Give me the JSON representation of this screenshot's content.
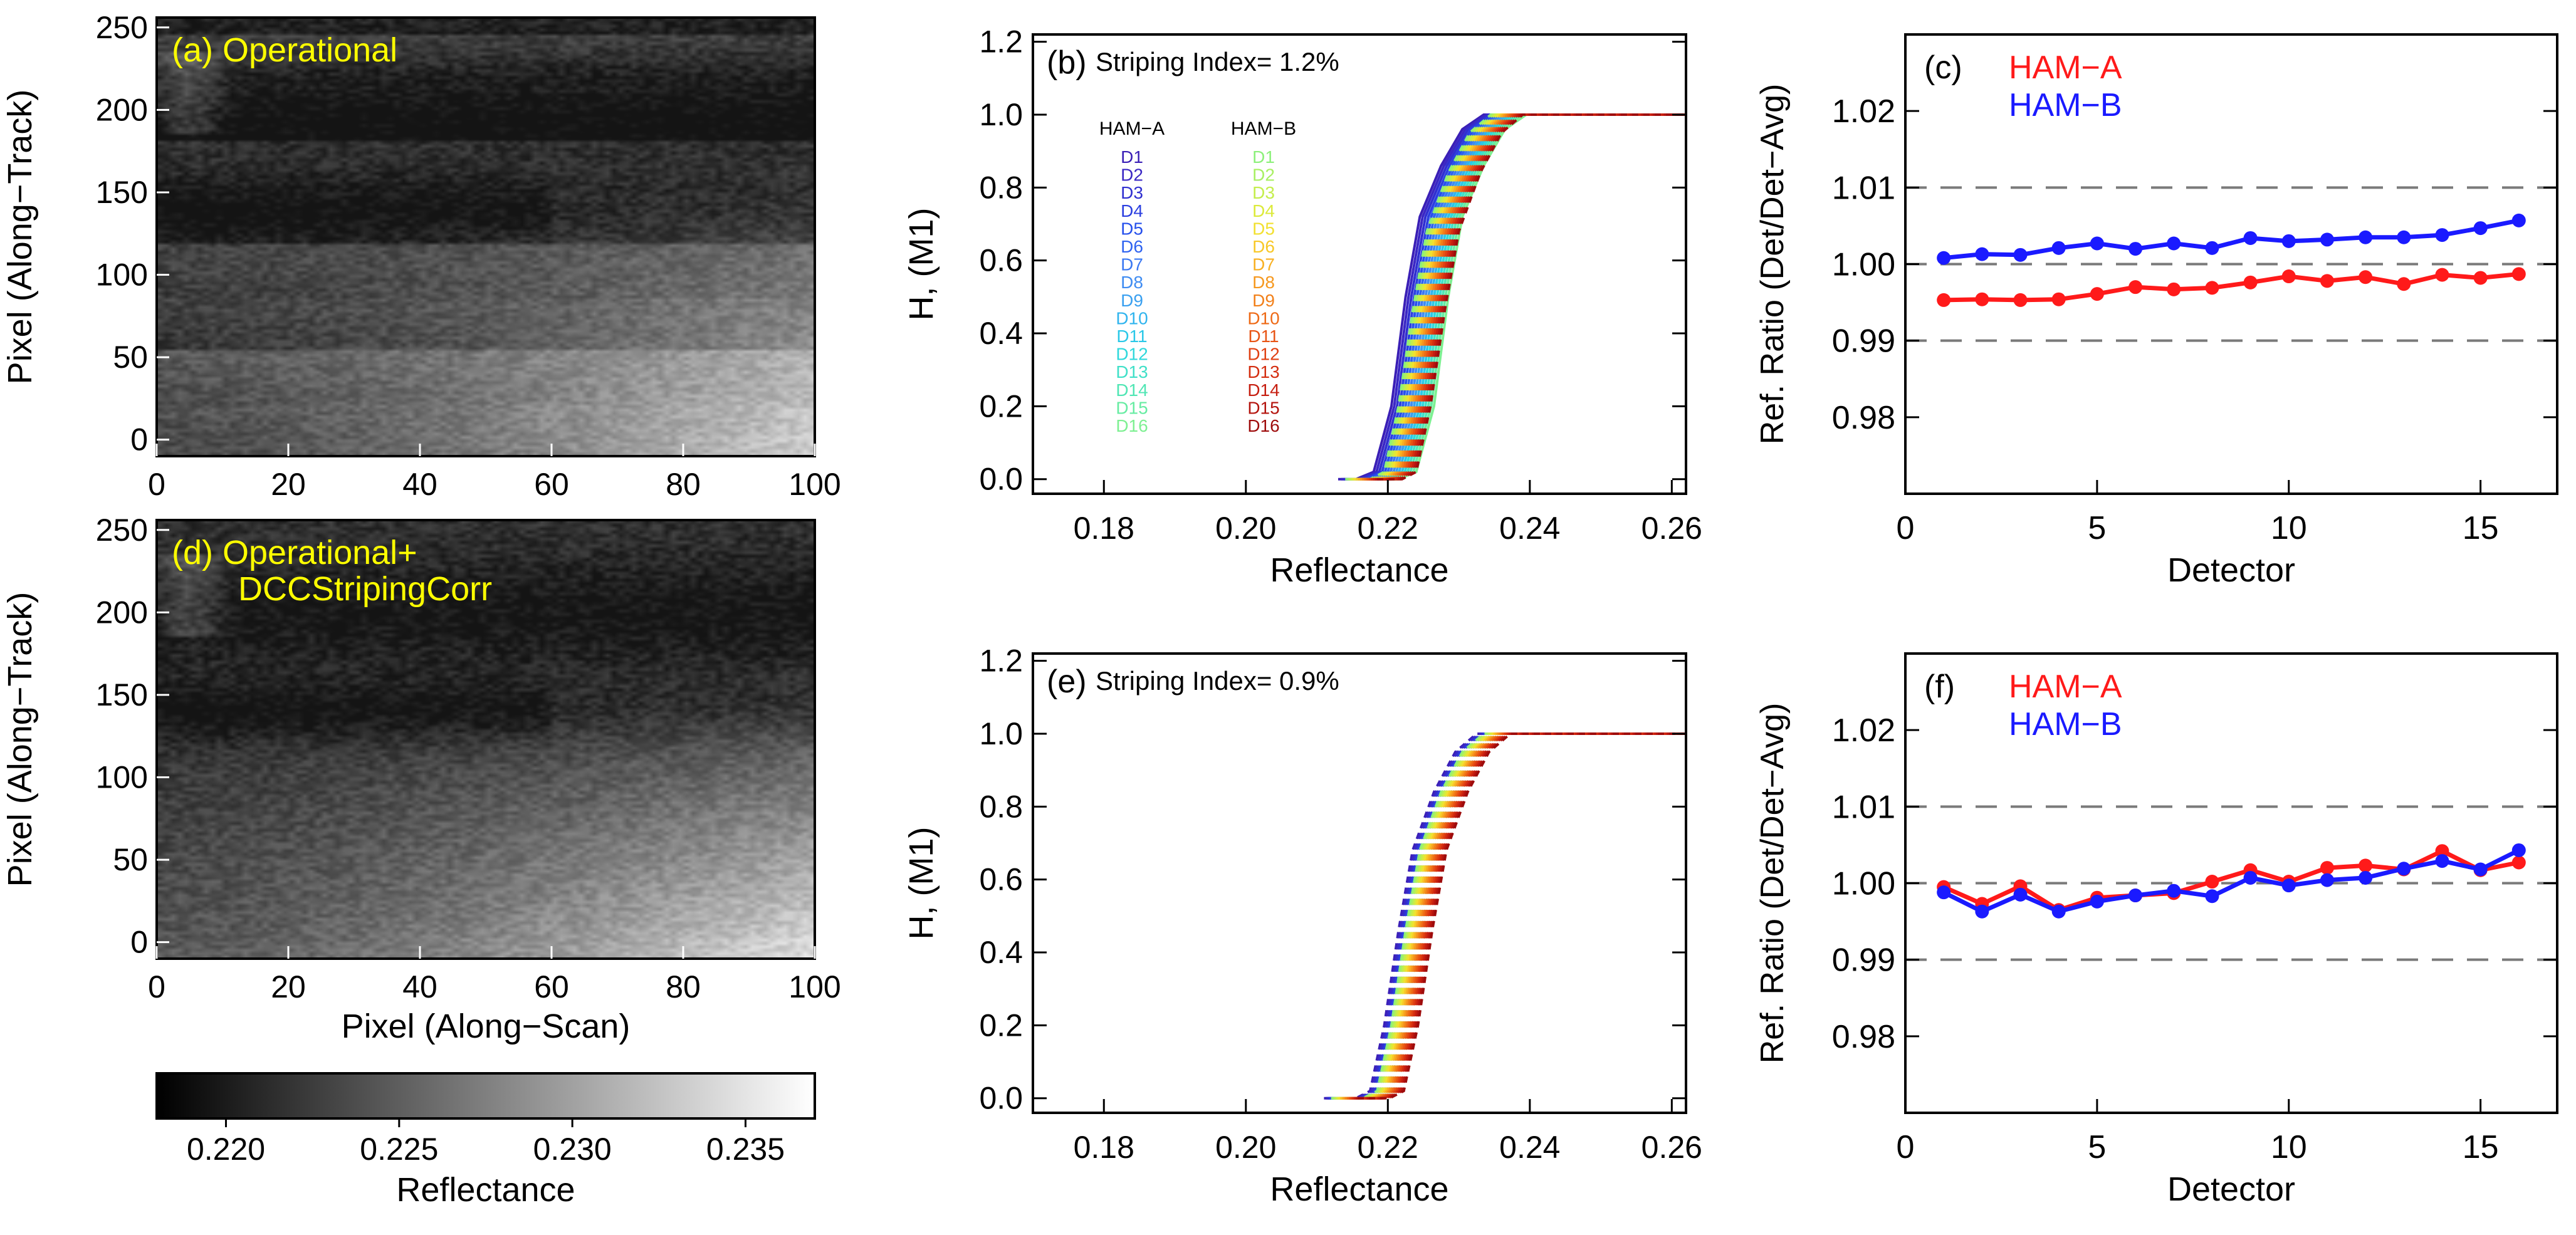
{
  "figure": {
    "colorbar": {
      "label": "Reflectance",
      "min": 0.218,
      "max": 0.237,
      "ticks": [
        "0.220",
        "0.225",
        "0.230",
        "0.235"
      ],
      "tick_values": [
        0.22,
        0.225,
        0.23,
        0.235
      ]
    }
  },
  "chart_data": [
    {
      "panel": "a",
      "type": "heatmap",
      "label": "(a) Operational",
      "xlabel": "",
      "ylabel": "Pixel (Along−Track)",
      "xlim": [
        0,
        100
      ],
      "ylim": [
        -10,
        256
      ],
      "xticks": [
        "0",
        "20",
        "40",
        "60",
        "80",
        "100"
      ],
      "yticks": [
        "0",
        "50",
        "100",
        "150",
        "200",
        "250"
      ],
      "striped": true
    },
    {
      "panel": "d",
      "type": "heatmap",
      "label": "(d) Operational+",
      "label_line2": "DCCStripingCorr",
      "xlabel": "Pixel (Along−Scan)",
      "ylabel": "Pixel (Along−Track)",
      "xlim": [
        0,
        100
      ],
      "ylim": [
        -10,
        256
      ],
      "xticks": [
        "0",
        "20",
        "40",
        "60",
        "80",
        "100"
      ],
      "yticks": [
        "0",
        "50",
        "100",
        "150",
        "200",
        "250"
      ],
      "striped": false
    },
    {
      "panel": "b",
      "type": "line",
      "label": "(b)",
      "annotation": "Striping Index= 1.2%",
      "xlabel": "Reflectance",
      "ylabel": "H, (M1)",
      "xlim": [
        0.17,
        0.262
      ],
      "ylim": [
        -0.04,
        1.22
      ],
      "xticks": [
        "0.18",
        "0.20",
        "0.22",
        "0.24",
        "0.26"
      ],
      "yticks": [
        "0.0",
        "0.2",
        "0.4",
        "0.6",
        "0.8",
        "1.0",
        "1.2"
      ],
      "legend_header_a": "HAM−A",
      "legend_header_b": "HAM−B",
      "detectors": [
        "D1",
        "D2",
        "D3",
        "D4",
        "D5",
        "D6",
        "D7",
        "D8",
        "D9",
        "D10",
        "D11",
        "D12",
        "D13",
        "D14",
        "D15",
        "D16"
      ],
      "colors_a": [
        "#3a1fb6",
        "#3a27c4",
        "#3030d0",
        "#2b3fe0",
        "#2650ec",
        "#2f63f0",
        "#3a78f2",
        "#3f8cf2",
        "#3aa0f0",
        "#30b4ee",
        "#2ac8e8",
        "#2fd8dc",
        "#40e0c8",
        "#50e6b4",
        "#66eca2",
        "#7ef092"
      ],
      "colors_b": [
        "#8cf07a",
        "#a8f062",
        "#c4ee4c",
        "#dcea3a",
        "#f2e030",
        "#f8c828",
        "#f8b022",
        "#f6981e",
        "#f2801a",
        "#ee6a16",
        "#e85414",
        "#e04012",
        "#d42e10",
        "#c61e10",
        "#b4140e",
        "#9e0c0c"
      ],
      "curve_a_x": [
        0.213,
        0.2155,
        0.218,
        0.2205,
        0.2225,
        0.2245,
        0.2275,
        0.2305,
        0.2335,
        0.236,
        0.262
      ],
      "curve_a_y": [
        0.0,
        0.0,
        0.02,
        0.2,
        0.5,
        0.72,
        0.86,
        0.96,
        1.0,
        1.0,
        1.0
      ],
      "shift_a": 0.0004,
      "curve_b_x": [
        0.214,
        0.2175,
        0.2195,
        0.2215,
        0.2235,
        0.2255,
        0.2285,
        0.2315,
        0.2345,
        0.237,
        0.262
      ],
      "curve_b_y": [
        0.0,
        0.0,
        0.02,
        0.2,
        0.46,
        0.68,
        0.84,
        0.95,
        1.0,
        1.0,
        1.0
      ],
      "shift_b": 0.0003
    },
    {
      "panel": "e",
      "type": "line",
      "label": "(e)",
      "annotation": "Striping Index= 0.9%",
      "xlabel": "Reflectance",
      "ylabel": "H, (M1)",
      "xlim": [
        0.17,
        0.262
      ],
      "ylim": [
        -0.04,
        1.22
      ],
      "xticks": [
        "0.18",
        "0.20",
        "0.22",
        "0.24",
        "0.26"
      ],
      "yticks": [
        "0.0",
        "0.2",
        "0.4",
        "0.6",
        "0.8",
        "1.0",
        "1.2"
      ],
      "curve_x": [
        0.213,
        0.2175,
        0.2195,
        0.2215,
        0.2235,
        0.2255,
        0.2285,
        0.2315,
        0.2345,
        0.2375,
        0.262
      ],
      "curve_y": [
        0.0,
        0.0,
        0.02,
        0.2,
        0.46,
        0.68,
        0.84,
        0.95,
        1.0,
        1.0,
        1.0
      ],
      "shift": 0.00025
    },
    {
      "panel": "c",
      "type": "line",
      "label": "(c)",
      "xlabel": "Detector",
      "ylabel": "Ref. Ratio (Det/Det−Avg)",
      "xlim": [
        0,
        17
      ],
      "ylim": [
        0.97,
        1.03
      ],
      "xticks": [
        "0",
        "5",
        "10",
        "15"
      ],
      "yticks": [
        "0.98",
        "0.99",
        "1.00",
        "1.01",
        "1.02"
      ],
      "ref_lines": [
        0.99,
        1.0,
        1.01
      ],
      "x": [
        1,
        2,
        3,
        4,
        5,
        6,
        7,
        8,
        9,
        10,
        11,
        12,
        13,
        14,
        15,
        16
      ],
      "series": [
        {
          "name": "HAM−A",
          "color": "#ff1a1a",
          "values": [
            0.9953,
            0.9954,
            0.9953,
            0.9954,
            0.9961,
            0.997,
            0.9967,
            0.9969,
            0.9976,
            0.9984,
            0.9978,
            0.9983,
            0.9974,
            0.9986,
            0.9982,
            0.9987
          ]
        },
        {
          "name": "HAM−B",
          "color": "#1a1aff",
          "values": [
            1.0008,
            1.0013,
            1.0012,
            1.0021,
            1.0027,
            1.002,
            1.0027,
            1.0021,
            1.0034,
            1.003,
            1.0032,
            1.0035,
            1.0035,
            1.0038,
            1.0047,
            1.0057
          ]
        }
      ]
    },
    {
      "panel": "f",
      "type": "line",
      "label": "(f)",
      "xlabel": "Detector",
      "ylabel": "Ref. Ratio (Det/Det−Avg)",
      "xlim": [
        0,
        17
      ],
      "ylim": [
        0.97,
        1.03
      ],
      "xticks": [
        "0",
        "5",
        "10",
        "15"
      ],
      "yticks": [
        "0.98",
        "0.99",
        "1.00",
        "1.01",
        "1.02"
      ],
      "ref_lines": [
        0.99,
        1.0,
        1.01
      ],
      "x": [
        1,
        2,
        3,
        4,
        5,
        6,
        7,
        8,
        9,
        10,
        11,
        12,
        13,
        14,
        15,
        16
      ],
      "series": [
        {
          "name": "HAM−A",
          "color": "#ff1a1a",
          "values": [
            0.9995,
            0.9973,
            0.9996,
            0.9965,
            0.9981,
            0.9984,
            0.9987,
            1.0002,
            1.0017,
            1.0002,
            1.002,
            1.0023,
            1.0018,
            1.0042,
            1.0017,
            1.0027
          ]
        },
        {
          "name": "HAM−B",
          "color": "#1a1aff",
          "values": [
            0.9988,
            0.9963,
            0.9985,
            0.9963,
            0.9976,
            0.9984,
            0.999,
            0.9983,
            1.0007,
            0.9997,
            1.0004,
            1.0007,
            1.0019,
            1.0029,
            1.0018,
            1.0043
          ]
        }
      ]
    }
  ]
}
